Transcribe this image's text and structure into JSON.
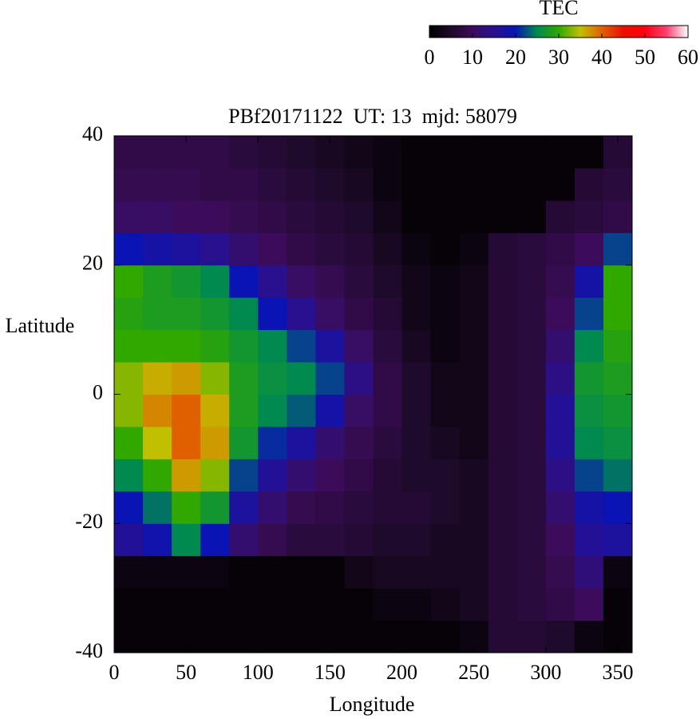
{
  "chart_data": {
    "type": "heatmap",
    "title": "PBf20171122  UT: 13  mjd: 58079",
    "xlabel": "Longitude",
    "ylabel": "Latitude",
    "colorbar_label": "TEC",
    "xbins": [
      0,
      20,
      40,
      60,
      80,
      100,
      120,
      140,
      160,
      180,
      200,
      220,
      240,
      260,
      280,
      300,
      320,
      340,
      360
    ],
    "ybins": [
      -40,
      -35,
      -30,
      -25,
      -20,
      -15,
      -10,
      -5,
      0,
      5,
      10,
      15,
      20,
      25,
      30,
      35,
      40
    ],
    "z": [
      [
        1,
        1,
        1,
        1,
        1,
        1,
        1,
        1,
        1,
        1,
        1,
        1,
        2,
        6,
        6,
        5,
        2,
        1
      ],
      [
        1,
        1,
        1,
        1,
        1,
        1,
        1,
        1,
        1,
        2,
        2,
        3,
        4,
        6,
        7,
        8,
        10,
        1
      ],
      [
        2,
        2,
        2,
        2,
        1,
        1,
        1,
        1,
        3,
        4,
        4,
        4,
        4,
        6,
        7,
        9,
        13,
        2
      ],
      [
        16,
        19,
        25,
        20,
        12,
        9,
        7,
        7,
        6,
        5,
        5,
        4,
        4,
        6,
        7,
        10,
        16,
        17
      ],
      [
        20,
        24,
        30,
        27,
        17,
        12,
        9,
        8,
        7,
        6,
        6,
        5,
        4,
        6,
        7,
        12,
        18,
        20
      ],
      [
        25,
        30,
        37,
        33,
        22,
        16,
        12,
        10,
        8,
        6,
        5,
        5,
        4,
        6,
        7,
        14,
        22,
        24
      ],
      [
        30,
        35,
        40,
        37,
        27,
        21,
        17,
        12,
        9,
        7,
        5,
        4,
        3,
        6,
        7,
        16,
        25,
        26
      ],
      [
        33,
        38,
        40,
        36,
        28,
        25,
        23,
        18,
        11,
        8,
        5,
        3,
        3,
        6,
        7,
        16,
        26,
        27
      ],
      [
        33,
        36,
        37,
        33,
        28,
        26,
        25,
        22,
        14,
        8,
        5,
        3,
        3,
        6,
        7,
        14,
        27,
        28
      ],
      [
        30,
        30,
        30,
        29,
        27,
        25,
        22,
        17,
        11,
        7,
        4,
        2,
        3,
        6,
        7,
        12,
        25,
        29
      ],
      [
        29,
        28,
        28,
        27,
        25,
        20,
        15,
        11,
        8,
        6,
        3,
        2,
        3,
        6,
        7,
        10,
        22,
        30
      ],
      [
        30,
        28,
        27,
        25,
        20,
        15,
        11,
        9,
        7,
        5,
        3,
        2,
        3,
        6,
        7,
        9,
        18,
        30
      ],
      [
        20,
        18,
        17,
        15,
        12,
        10,
        8,
        7,
        6,
        4,
        2,
        1,
        2,
        6,
        7,
        8,
        10,
        22
      ],
      [
        11,
        11,
        10,
        10,
        9,
        8,
        7,
        6,
        5,
        3,
        1,
        1,
        1,
        1,
        1,
        6,
        7,
        8
      ],
      [
        9,
        9,
        9,
        8,
        8,
        7,
        6,
        5,
        4,
        2,
        1,
        1,
        1,
        1,
        1,
        1,
        6,
        7
      ],
      [
        8,
        8,
        8,
        8,
        7,
        6,
        5,
        4,
        3,
        2,
        1,
        1,
        1,
        1,
        1,
        1,
        1,
        6
      ]
    ],
    "xlim": [
      0,
      360
    ],
    "xticks": [
      0,
      50,
      100,
      150,
      200,
      250,
      300,
      350
    ],
    "ylim": [
      -40,
      40
    ],
    "yticks": [
      -40,
      -20,
      0,
      20,
      40
    ],
    "zlim": [
      0,
      60
    ],
    "zticks": [
      0,
      10,
      20,
      30,
      40,
      50,
      60
    ],
    "colormap": [
      "#000000",
      "#1e0a2a",
      "#3c0c5a",
      "#28108e",
      "#0a14b4",
      "#008a50",
      "#30a800",
      "#c0c000",
      "#e06000",
      "#e81000",
      "#ff0010",
      "#ff4070",
      "#ffffff"
    ]
  }
}
